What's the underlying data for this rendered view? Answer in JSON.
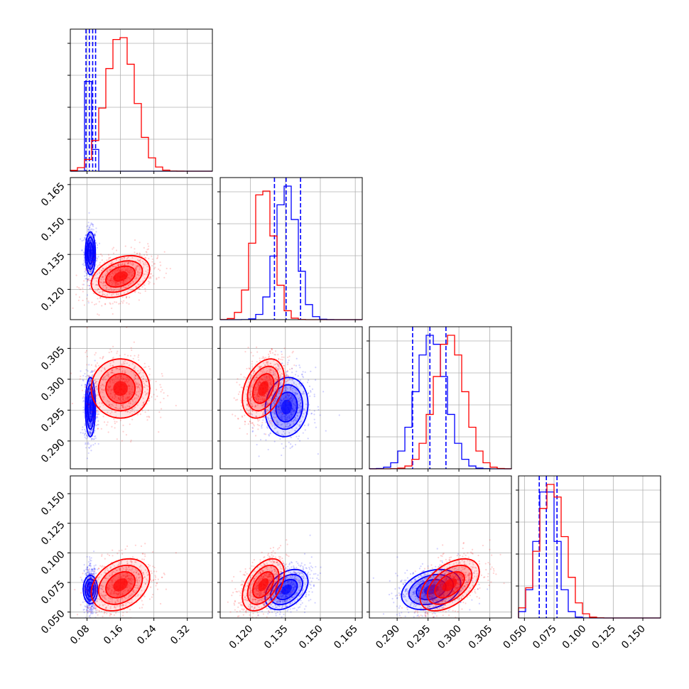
{
  "colors": {
    "series_a": "#0000ff",
    "series_b": "#ff0000",
    "grid": "#b0b0b0",
    "axis": "#000000"
  },
  "chart_data": {
    "type": "corner",
    "grid": true,
    "parameters": [
      {
        "ticks": [
          0.08,
          0.16,
          0.24,
          0.32
        ],
        "tick_labels": [
          "0.08",
          "0.16",
          "0.24",
          "0.32"
        ],
        "range": [
          0.04,
          0.38
        ]
      },
      {
        "ticks": [
          0.12,
          0.135,
          0.15,
          0.165
        ],
        "tick_labels": [
          "0.120",
          "0.135",
          "0.150",
          "0.165"
        ],
        "range": [
          0.107,
          0.168
        ]
      },
      {
        "ticks": [
          0.29,
          0.295,
          0.3,
          0.305
        ],
        "tick_labels": [
          "0.290",
          "0.295",
          "0.300",
          "0.305"
        ],
        "range": [
          0.2855,
          0.3085
        ]
      },
      {
        "ticks": [
          0.05,
          0.075,
          0.1,
          0.125,
          0.15
        ],
        "tick_labels": [
          "0.050",
          "0.075",
          "0.100",
          "0.125",
          "0.150"
        ],
        "range": [
          0.045,
          0.165
        ]
      }
    ],
    "series": [
      {
        "color": "blue",
        "mean": [
          0.088,
          0.1355,
          0.2955,
          0.069
        ],
        "sd": [
          0.006,
          0.0046,
          0.0024,
          0.0085
        ],
        "quantile_lines": [
          [
            0.0775,
            0.0855,
            0.0935,
            0.1005
          ],
          [
            0.1303,
            0.1353,
            0.1415
          ],
          [
            0.2925,
            0.2953,
            0.2979
          ],
          [
            0.0625,
            0.0685,
            0.0775
          ]
        ]
      },
      {
        "color": "red",
        "mean": [
          0.16,
          0.1255,
          0.2985,
          0.073
        ],
        "sd": [
          0.035,
          0.0045,
          0.0024,
          0.011
        ],
        "quantile_lines": []
      }
    ],
    "correlations": [
      {
        "pair": [
          0,
          1
        ],
        "blue": 0.0,
        "red": 0.35
      },
      {
        "pair": [
          0,
          2
        ],
        "blue": 0.0,
        "red": 0.0
      },
      {
        "pair": [
          1,
          2
        ],
        "blue": 0.1,
        "red": 0.35
      },
      {
        "pair": [
          0,
          3
        ],
        "blue": 0.0,
        "red": 0.3
      },
      {
        "pair": [
          1,
          3
        ],
        "blue": 0.4,
        "red": 0.45
      },
      {
        "pair": [
          2,
          3
        ],
        "blue": 0.3,
        "red": 0.5
      }
    ]
  }
}
